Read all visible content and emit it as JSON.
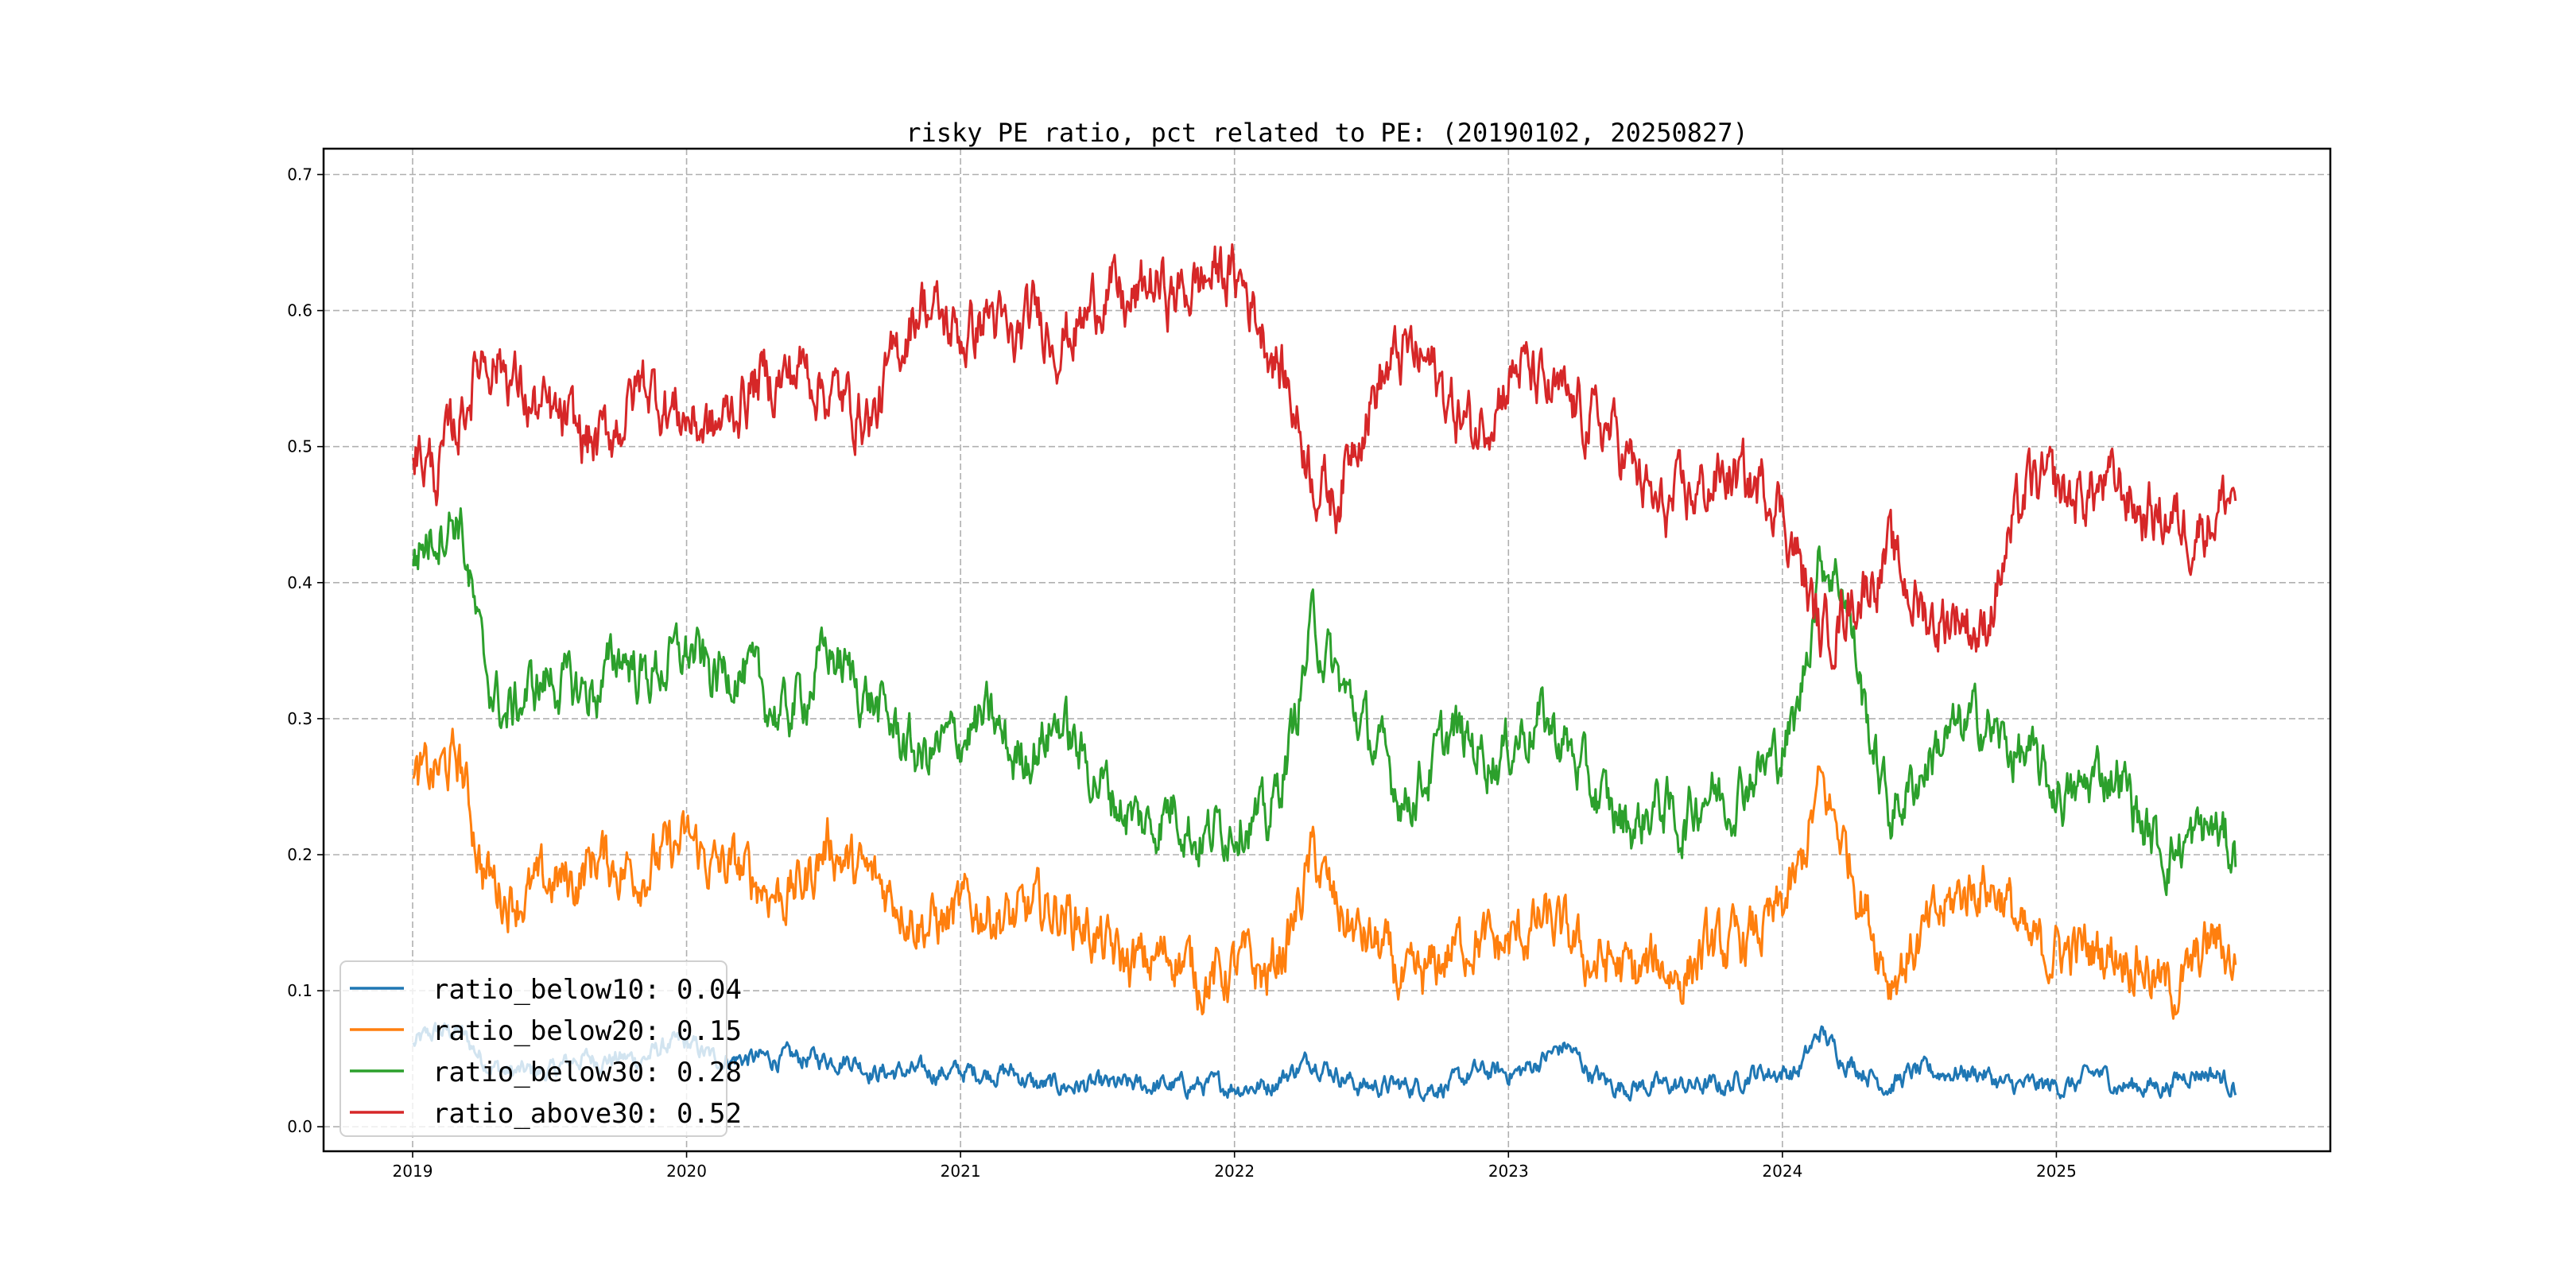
{
  "chart_data": {
    "type": "line",
    "title": "risky PE ratio, pct related to PE: (20190102, 20250827)",
    "xlabel": "",
    "ylabel": "",
    "xlim": [
      2018.675,
      2026.0
    ],
    "ylim": [
      -0.018,
      0.719
    ],
    "grid": true,
    "legend_position": "bottom-left",
    "x_ticks": [
      "2019",
      "2020",
      "2021",
      "2022",
      "2023",
      "2024",
      "2025"
    ],
    "y_ticks": [
      "0.0",
      "0.1",
      "0.2",
      "0.3",
      "0.4",
      "0.5",
      "0.6",
      "0.7"
    ],
    "x_start": "2019-01",
    "x_end": "2025-08",
    "sampling": "monthly (approximate)",
    "series": [
      {
        "name": "ratio_below10",
        "legend": "ratio_below10: 0.04",
        "color": "#1f77b4",
        "noise": 0.008,
        "values": [
          0.06,
          0.07,
          0.07,
          0.05,
          0.04,
          0.04,
          0.04,
          0.05,
          0.05,
          0.05,
          0.05,
          0.06,
          0.06,
          0.05,
          0.05,
          0.05,
          0.05,
          0.05,
          0.05,
          0.05,
          0.04,
          0.04,
          0.04,
          0.04,
          0.04,
          0.04,
          0.04,
          0.03,
          0.03,
          0.03,
          0.03,
          0.03,
          0.03,
          0.03,
          0.03,
          0.03,
          0.03,
          0.03,
          0.04,
          0.05,
          0.04,
          0.03,
          0.03,
          0.03,
          0.03,
          0.03,
          0.04,
          0.04,
          0.04,
          0.05,
          0.06,
          0.04,
          0.03,
          0.03,
          0.03,
          0.03,
          0.03,
          0.03,
          0.04,
          0.04,
          0.04,
          0.07,
          0.05,
          0.04,
          0.03,
          0.04,
          0.04,
          0.04,
          0.04,
          0.03,
          0.03,
          0.03,
          0.03,
          0.04,
          0.03,
          0.03,
          0.03,
          0.04,
          0.04,
          0.03
        ]
      },
      {
        "name": "ratio_below20",
        "legend": "ratio_below20: 0.15",
        "color": "#ff7f0e",
        "noise": 0.022,
        "values": [
          0.25,
          0.26,
          0.27,
          0.19,
          0.17,
          0.17,
          0.18,
          0.18,
          0.2,
          0.19,
          0.19,
          0.2,
          0.21,
          0.19,
          0.19,
          0.18,
          0.17,
          0.18,
          0.21,
          0.19,
          0.18,
          0.17,
          0.15,
          0.15,
          0.16,
          0.16,
          0.15,
          0.16,
          0.16,
          0.15,
          0.13,
          0.12,
          0.12,
          0.13,
          0.11,
          0.11,
          0.12,
          0.11,
          0.14,
          0.2,
          0.16,
          0.14,
          0.13,
          0.1,
          0.11,
          0.13,
          0.14,
          0.13,
          0.14,
          0.15,
          0.14,
          0.12,
          0.12,
          0.11,
          0.12,
          0.11,
          0.13,
          0.13,
          0.14,
          0.15,
          0.18,
          0.25,
          0.21,
          0.16,
          0.11,
          0.13,
          0.15,
          0.17,
          0.18,
          0.17,
          0.13,
          0.13,
          0.13,
          0.13,
          0.13,
          0.12,
          0.1,
          0.11,
          0.14,
          0.12
        ]
      },
      {
        "name": "ratio_below30",
        "legend": "ratio_below30: 0.28",
        "color": "#2ca02c",
        "noise": 0.022,
        "values": [
          0.42,
          0.44,
          0.45,
          0.34,
          0.3,
          0.32,
          0.33,
          0.32,
          0.32,
          0.35,
          0.33,
          0.34,
          0.35,
          0.33,
          0.34,
          0.32,
          0.3,
          0.32,
          0.35,
          0.33,
          0.31,
          0.29,
          0.27,
          0.28,
          0.29,
          0.3,
          0.27,
          0.28,
          0.3,
          0.27,
          0.25,
          0.23,
          0.22,
          0.24,
          0.21,
          0.22,
          0.23,
          0.22,
          0.28,
          0.37,
          0.33,
          0.3,
          0.27,
          0.24,
          0.26,
          0.29,
          0.28,
          0.27,
          0.29,
          0.3,
          0.28,
          0.25,
          0.23,
          0.22,
          0.24,
          0.22,
          0.25,
          0.24,
          0.26,
          0.27,
          0.3,
          0.42,
          0.4,
          0.3,
          0.23,
          0.25,
          0.28,
          0.29,
          0.3,
          0.28,
          0.27,
          0.25,
          0.24,
          0.26,
          0.26,
          0.22,
          0.2,
          0.21,
          0.22,
          0.2
        ]
      },
      {
        "name": "ratio_above30",
        "legend": "ratio_above30: 0.52",
        "color": "#d62728",
        "noise": 0.024,
        "values": [
          0.5,
          0.48,
          0.52,
          0.57,
          0.56,
          0.53,
          0.52,
          0.51,
          0.5,
          0.52,
          0.55,
          0.53,
          0.52,
          0.51,
          0.53,
          0.55,
          0.55,
          0.56,
          0.54,
          0.53,
          0.52,
          0.57,
          0.61,
          0.59,
          0.58,
          0.6,
          0.57,
          0.6,
          0.58,
          0.59,
          0.62,
          0.6,
          0.62,
          0.61,
          0.62,
          0.63,
          0.62,
          0.58,
          0.54,
          0.48,
          0.46,
          0.52,
          0.55,
          0.57,
          0.56,
          0.53,
          0.51,
          0.54,
          0.56,
          0.54,
          0.53,
          0.52,
          0.51,
          0.48,
          0.45,
          0.46,
          0.47,
          0.48,
          0.47,
          0.47,
          0.42,
          0.36,
          0.38,
          0.4,
          0.42,
          0.39,
          0.37,
          0.38,
          0.36,
          0.42,
          0.47,
          0.47,
          0.46,
          0.47,
          0.47,
          0.45,
          0.45,
          0.44,
          0.45,
          0.47
        ]
      }
    ]
  }
}
